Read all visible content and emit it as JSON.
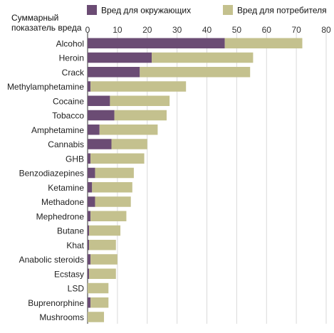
{
  "chart_data": {
    "type": "bar",
    "orientation": "horizontal",
    "stacked": true,
    "ylabel_lines": [
      "Суммарный",
      "показатель вреда"
    ],
    "xlim": [
      0,
      80
    ],
    "xticks": [
      0,
      10,
      20,
      30,
      40,
      50,
      60,
      70,
      80
    ],
    "grid": true,
    "legend_position": "top",
    "categories": [
      "Alcohol",
      "Heroin",
      "Crack",
      "Methylamphetamine",
      "Cocaine",
      "Tobacco",
      "Amphetamine",
      "Cannabis",
      "GHB",
      "Benzodiazepines",
      "Ketamine",
      "Methadone",
      "Mephedrone",
      "Butane",
      "Khat",
      "Anabolic steroids",
      "Ecstasy",
      "LSD",
      "Buprenorphine",
      "Mushrooms"
    ],
    "series": [
      {
        "name": "Вред для окружающих",
        "color": "#6b4c74",
        "values": [
          46,
          21.5,
          17.5,
          1,
          7.5,
          9,
          4,
          8,
          1,
          2.5,
          1.5,
          2.5,
          1,
          0.5,
          0.5,
          1,
          0.5,
          0,
          1,
          0
        ]
      },
      {
        "name": "Вред для потребителя",
        "color": "#c4c18e",
        "values": [
          26,
          34,
          37,
          32,
          20,
          17.5,
          19.5,
          12,
          18,
          13,
          13.5,
          12,
          12,
          10.5,
          9,
          9,
          9,
          7,
          6,
          5.5
        ]
      }
    ]
  }
}
